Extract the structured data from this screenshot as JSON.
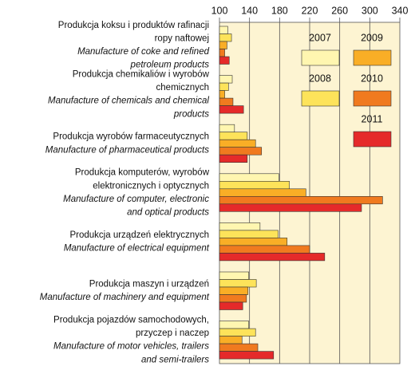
{
  "chart_data": {
    "type": "barh",
    "categories": [
      {
        "pl": [
          "Produkcja koksu i produktów rafinacji",
          "ropy naftowej"
        ],
        "en": [
          "Manufacture of coke and refined",
          "petroleum products"
        ]
      },
      {
        "pl": [
          "Produkcja chemikaliów i wyrobów",
          "chemicznych"
        ],
        "en": [
          "Manufacture of chemicals and chemical",
          "products"
        ]
      },
      {
        "pl": [
          "Produkcja wyrobów farmaceutycznych"
        ],
        "en": [
          "Manufacture of pharmaceutical products"
        ]
      },
      {
        "pl": [
          "Produkcja komputerów, wyrobów",
          "elektronicznych i optycznych"
        ],
        "en": [
          "Manufacture of computer, electronic",
          "and optical products"
        ]
      },
      {
        "pl": [
          "Produkcja urządzeń elektrycznych"
        ],
        "en": [
          "Manufacture of electrical equipment"
        ]
      },
      {
        "pl": [
          "Produkcja maszyn i urządzeń"
        ],
        "en": [
          "Manufacture of machinery and equipment"
        ]
      },
      {
        "pl": [
          "Produkcja pojazdów samochodowych,",
          "przyczep i naczep"
        ],
        "en": [
          "Manufacture of motor vehicles, trailers",
          "and semi-trailers"
        ]
      }
    ],
    "series": [
      {
        "name": "2007",
        "color": "#fff6b0",
        "values": [
          111,
          117,
          120,
          179,
          154,
          139,
          139
        ]
      },
      {
        "name": "2008",
        "color": "#fde35a",
        "values": [
          116,
          112,
          137,
          193,
          178,
          149,
          148
        ]
      },
      {
        "name": "2009",
        "color": "#f9ae26",
        "values": [
          110,
          107,
          148,
          215,
          190,
          138,
          130
        ]
      },
      {
        "name": "2010",
        "color": "#f07a1f",
        "values": [
          107,
          118,
          156,
          317,
          220,
          136,
          151
        ]
      },
      {
        "name": "2011",
        "color": "#e52a2a",
        "values": [
          113,
          132,
          137,
          289,
          240,
          131,
          172
        ]
      }
    ],
    "xlim": [
      100,
      340
    ],
    "xticks": [
      100,
      140,
      180,
      220,
      260,
      300,
      340
    ],
    "grid": true
  }
}
